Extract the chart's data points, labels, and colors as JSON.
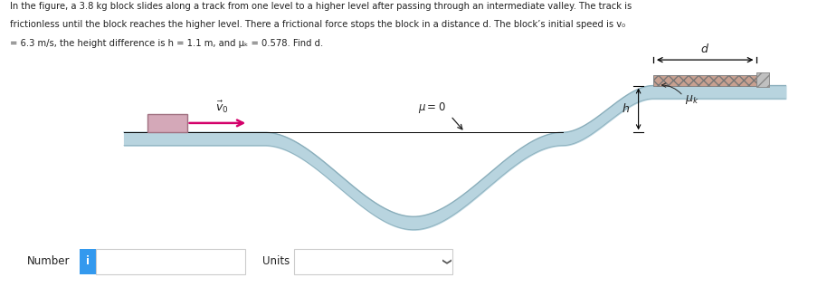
{
  "title_line1": "In the figure, a 3.8 kg block slides along a track from one level to a higher level after passing through an intermediate valley. The track is",
  "title_line2": "frictionless until the block reaches the higher level. There a frictional force stops the block in a distance d. The block’s initial speed is v₀",
  "title_line3": "= 6.3 m/s, the height difference is h = 1.1 m, and μₖ = 0.578. Find d.",
  "bg_color": "#ffffff",
  "track_fill_color": "#b8d4df",
  "track_edge_color": "#8aaebb",
  "block_color": "#d4a8b8",
  "block_edge_color": "#a07080",
  "arrow_color": "#d4006a",
  "friction_fill_color": "#c8a090",
  "wall_color": "#c0c0c0",
  "number_box_color": "#3399ee",
  "text_color": "#222222",
  "label_number": "Number",
  "label_units": "Units"
}
